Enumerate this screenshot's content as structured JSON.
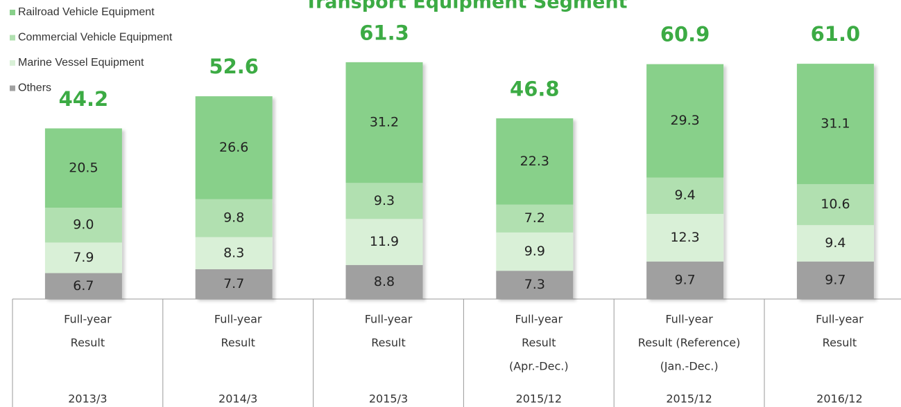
{
  "chart_data": {
    "type": "stacked-bar",
    "title": "Transport Equipment Segment",
    "categories": [
      "2013/3",
      "2014/3",
      "2015/3",
      "2015/12",
      "2015/12",
      "2016/12"
    ],
    "periods": [
      [
        "Full-year",
        "Result"
      ],
      [
        "Full-year",
        "Result"
      ],
      [
        "Full-year",
        "Result"
      ],
      [
        "Full-year",
        "Result",
        "(Apr.-Dec.)"
      ],
      [
        "Full-year",
        "Result (Reference)",
        "(Jan.-Dec.)"
      ],
      [
        "Full-year",
        "Result"
      ]
    ],
    "totals": [
      44.2,
      52.6,
      61.3,
      46.8,
      60.9,
      61.0
    ],
    "total_labels": [
      "44.2",
      "52.6",
      "61.3",
      "46.8",
      "60.9",
      "61.0"
    ],
    "series": [
      {
        "name": "Railroad Vehicle Equipment",
        "color": "#88d08a",
        "values": [
          20.5,
          26.6,
          31.2,
          22.3,
          29.3,
          31.1
        ],
        "value_labels": [
          "20.5",
          "26.6",
          "31.2",
          "22.3",
          "29.3",
          "31.1"
        ]
      },
      {
        "name": "Commercial Vehicle Equipment",
        "color": "#b1e0b0",
        "values": [
          9.0,
          9.8,
          9.3,
          7.2,
          9.4,
          10.6
        ],
        "value_labels": [
          "9.0",
          "9.8",
          "9.3",
          "7.2",
          "9.4",
          "10.6"
        ]
      },
      {
        "name": "Marine Vessel Equipment",
        "color": "#d9f0d7",
        "values": [
          7.9,
          8.3,
          11.9,
          9.9,
          12.3,
          9.4
        ],
        "value_labels": [
          "7.9",
          "8.3",
          "11.9",
          "9.9",
          "12.3",
          "9.4"
        ]
      },
      {
        "name": "Others",
        "color": "#a0a0a0",
        "values": [
          6.7,
          7.7,
          8.8,
          7.3,
          9.7,
          9.7
        ],
        "value_labels": [
          "6.7",
          "7.7",
          "8.8",
          "7.3",
          "9.7",
          "9.7"
        ]
      }
    ]
  }
}
